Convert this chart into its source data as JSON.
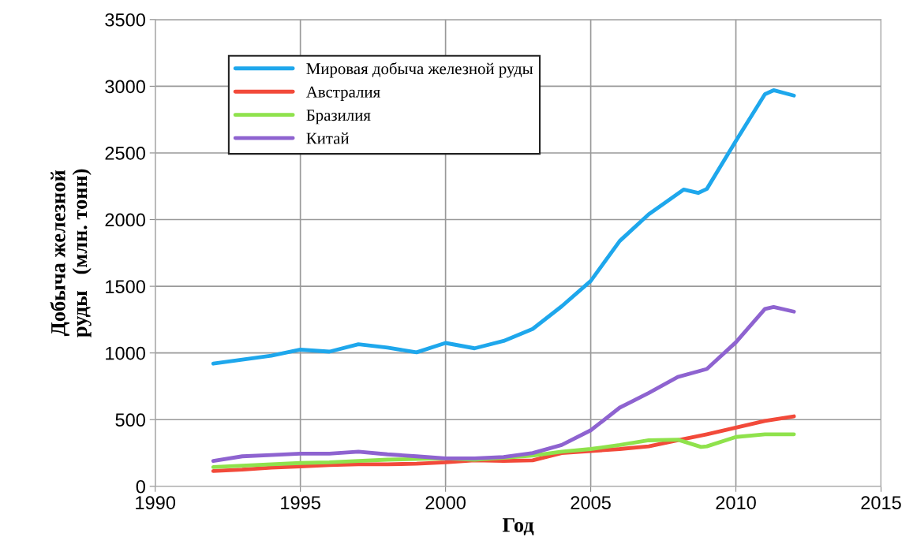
{
  "chart_data": {
    "type": "line",
    "xlabel": "Год",
    "ylabel": "Добыча железной\nруды   (млн. тонн)",
    "xlim": [
      1990,
      2015
    ],
    "xticks": [
      1990,
      1995,
      2000,
      2005,
      2010,
      2015
    ],
    "ylim": [
      0,
      3500
    ],
    "yticks": [
      0,
      500,
      1000,
      1500,
      2000,
      2500,
      3000,
      3500
    ],
    "grid": true,
    "legend": "top left",
    "marker": "none",
    "line_style": "solid",
    "series": [
      {
        "name": "Мировая добыча железной руды",
        "color": "#1ea7ec",
        "x": [
          1992,
          1993,
          1994,
          1995,
          1996,
          1997,
          1998,
          1999,
          2000,
          2001,
          2002,
          2003,
          2004,
          2005,
          2006,
          2007,
          2008.2,
          2008.7,
          2009,
          2010,
          2011,
          2011.3,
          2012
        ],
        "values": [
          920,
          950,
          980,
          1025,
          1010,
          1065,
          1040,
          1005,
          1075,
          1035,
          1090,
          1180,
          1350,
          1540,
          1840,
          2040,
          2225,
          2200,
          2230,
          2590,
          2940,
          2970,
          2930
        ]
      },
      {
        "name": "Австралия",
        "color": "#f24a3a",
        "x": [
          1992,
          1993,
          1994,
          1995,
          1996,
          1997,
          1998,
          1999,
          2000,
          2001,
          2002,
          2003,
          2004,
          2005,
          2006,
          2007,
          2008,
          2009,
          2010,
          2011,
          2012
        ],
        "values": [
          115,
          125,
          140,
          150,
          160,
          165,
          165,
          170,
          180,
          195,
          190,
          195,
          250,
          265,
          280,
          300,
          345,
          390,
          440,
          490,
          525
        ]
      },
      {
        "name": "Бразилия",
        "color": "#8fe24c",
        "x": [
          1992,
          1993,
          1994,
          1995,
          1996,
          1997,
          1998,
          1999,
          2000,
          2001,
          2002,
          2003,
          2004,
          2005,
          2006,
          2007,
          2008,
          2008.8,
          2009,
          2010,
          2011,
          2012
        ],
        "values": [
          145,
          155,
          165,
          175,
          180,
          190,
          200,
          205,
          210,
          200,
          215,
          230,
          260,
          280,
          310,
          345,
          350,
          295,
          300,
          370,
          390,
          390
        ]
      },
      {
        "name": "Китай",
        "color": "#8e63d0",
        "x": [
          1992,
          1993,
          1994,
          1995,
          1996,
          1997,
          1998,
          1999,
          2000,
          2001,
          2002,
          2003,
          2004,
          2005,
          2006,
          2007,
          2008,
          2009,
          2010,
          2011,
          2011.3,
          2012
        ],
        "values": [
          190,
          225,
          235,
          245,
          245,
          260,
          240,
          225,
          210,
          210,
          220,
          250,
          310,
          420,
          590,
          700,
          820,
          880,
          1080,
          1330,
          1345,
          1310
        ]
      }
    ]
  }
}
